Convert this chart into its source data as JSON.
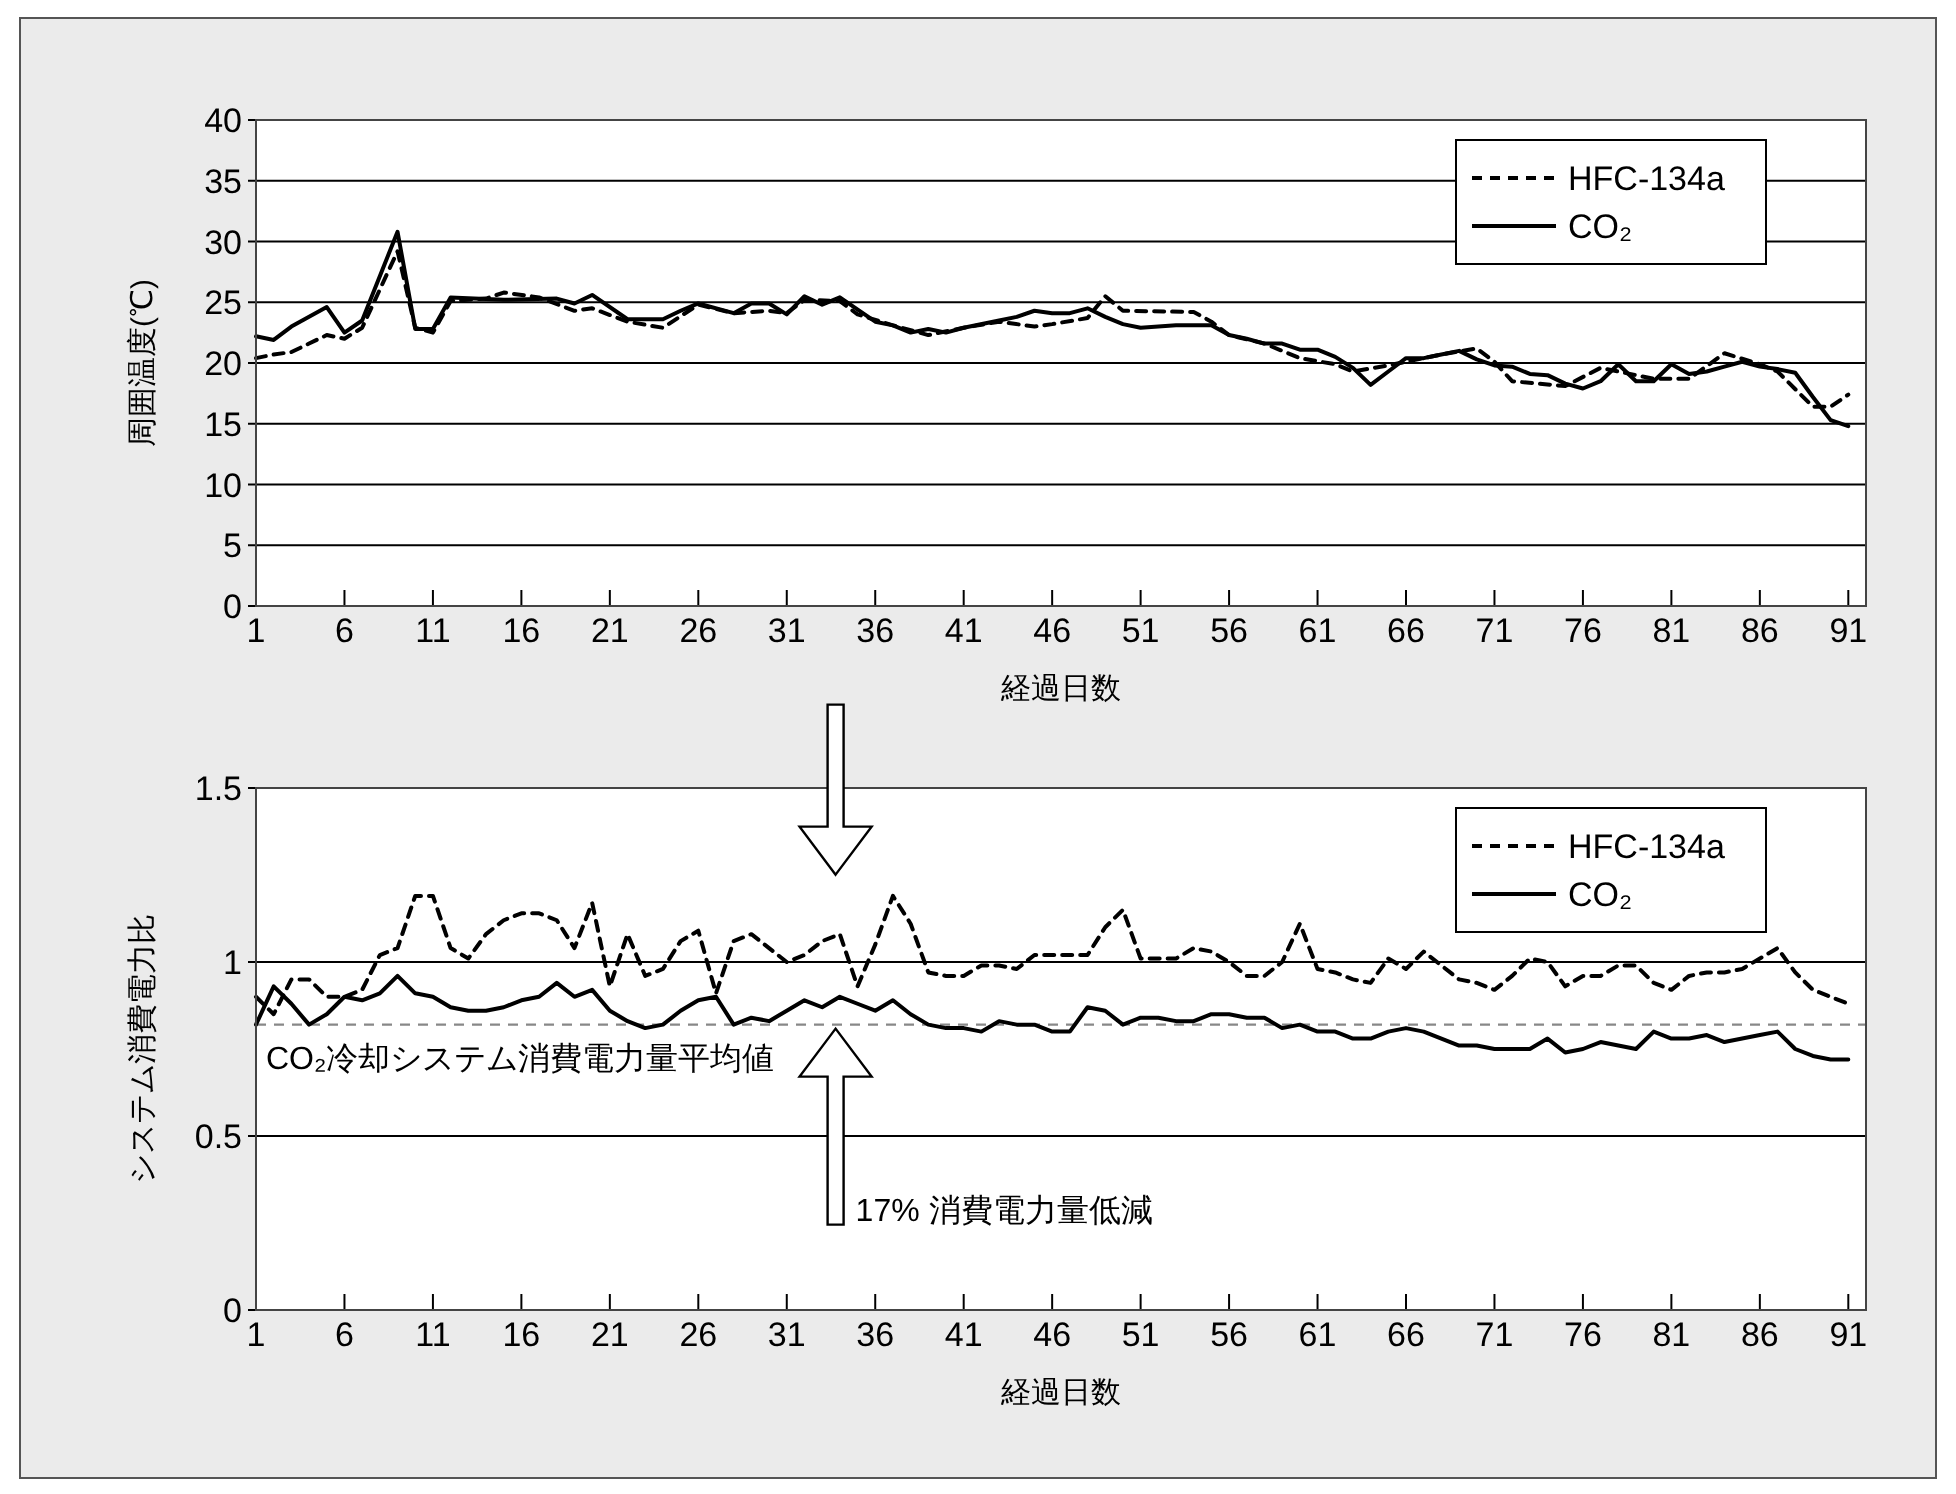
{
  "chart_data": [
    {
      "type": "line",
      "ylabel": "周囲温度(℃)",
      "xlabel": "経過日数",
      "xlim": [
        1,
        92
      ],
      "xticks": [
        1,
        6,
        11,
        16,
        21,
        26,
        31,
        36,
        41,
        46,
        51,
        56,
        61,
        66,
        71,
        76,
        81,
        86,
        91
      ],
      "ylim": [
        0,
        40
      ],
      "yticks": [
        0,
        5,
        10,
        15,
        20,
        25,
        30,
        35,
        40
      ],
      "grid": "y",
      "legend": "top right",
      "series": [
        {
          "name": "HFC-134a",
          "color": "#000000",
          "line_style": "dashed",
          "x": [
            1,
            2,
            3,
            4,
            5,
            6,
            7,
            9,
            10,
            11,
            12,
            14,
            15,
            17,
            19,
            20,
            22,
            24,
            26,
            28,
            30,
            31,
            32,
            34,
            35,
            37,
            39,
            41,
            43,
            45,
            46,
            48,
            49,
            50,
            54,
            55,
            56,
            58,
            60,
            62,
            63,
            65,
            68,
            70,
            71,
            72,
            75,
            77,
            80,
            82,
            84,
            86,
            87,
            89,
            90,
            91
          ],
          "values": [
            20.4,
            20.7,
            20.9,
            21.6,
            22.3,
            22,
            22.9,
            29.2,
            22.9,
            22.5,
            25.1,
            25.3,
            25.8,
            25.4,
            24.3,
            24.5,
            23.4,
            22.9,
            24.8,
            24.1,
            24.3,
            24.1,
            25.2,
            25.1,
            24,
            23.1,
            22.3,
            22.9,
            23.4,
            23,
            23.2,
            23.7,
            25.5,
            24.3,
            24.2,
            23.4,
            22.3,
            21.6,
            20.4,
            19.9,
            19.3,
            19.8,
            20.7,
            21.2,
            20.1,
            18.5,
            18.1,
            19.6,
            18.7,
            18.7,
            20.8,
            19.9,
            19.3,
            16.4,
            16.4,
            17.4
          ]
        },
        {
          "name": "CO₂",
          "color": "#000000",
          "line_style": "solid",
          "x": [
            1,
            2,
            3,
            5,
            6,
            7,
            9,
            10,
            11,
            12,
            15,
            18,
            19,
            20,
            22,
            24,
            25,
            26,
            28,
            29,
            30,
            31,
            32,
            33,
            34,
            36,
            37,
            38,
            39,
            40,
            41,
            43,
            44,
            45,
            46,
            47,
            48,
            49,
            50,
            51,
            53,
            55,
            56,
            57,
            58,
            59,
            60,
            61,
            62,
            63,
            64,
            65,
            66,
            67,
            68,
            69,
            70,
            71,
            72,
            73,
            74,
            75,
            76,
            77,
            78,
            79,
            80,
            81,
            82,
            83,
            84,
            85,
            86,
            87,
            88,
            89,
            90,
            91
          ],
          "values": [
            22.2,
            21.9,
            23,
            24.6,
            22.5,
            23.5,
            30.8,
            22.8,
            22.8,
            25.4,
            25.2,
            25.3,
            24.9,
            25.6,
            23.6,
            23.6,
            24.3,
            24.9,
            24.1,
            24.9,
            24.9,
            24,
            25.5,
            24.8,
            25.4,
            23.4,
            23.1,
            22.5,
            22.8,
            22.5,
            22.9,
            23.5,
            23.8,
            24.3,
            24.1,
            24.1,
            24.5,
            23.8,
            23.2,
            22.9,
            23.1,
            23.1,
            22.3,
            22,
            21.6,
            21.6,
            21.1,
            21.1,
            20.5,
            19.6,
            18.2,
            19.3,
            20.4,
            20.4,
            20.7,
            21,
            20.3,
            19.8,
            19.7,
            19.1,
            19,
            18.3,
            17.9,
            18.5,
            19.9,
            18.5,
            18.5,
            19.9,
            19.1,
            19.3,
            19.7,
            20.1,
            19.7,
            19.5,
            19.2,
            17.2,
            15.3,
            14.8
          ]
        }
      ]
    },
    {
      "type": "line",
      "ylabel": "システム消費電力比",
      "xlabel": "経過日数",
      "xlim": [
        1,
        92
      ],
      "xticks": [
        1,
        6,
        11,
        16,
        21,
        26,
        31,
        36,
        41,
        46,
        51,
        56,
        61,
        66,
        71,
        76,
        81,
        86,
        91
      ],
      "ylim": [
        0,
        1.5
      ],
      "yticks": [
        0,
        0.5,
        1,
        1.5
      ],
      "grid": "y",
      "legend": "top right",
      "ref_lines": [
        {
          "axis": "y",
          "value": 0.82,
          "label": "CO₂冷却システム消費電力量平均値",
          "color": "#888888",
          "line_style": "dashed"
        }
      ],
      "annotations": [
        "17% 消費電力量低減"
      ],
      "series": [
        {
          "name": "HFC-134a",
          "color": "#000000",
          "line_style": "dashed",
          "x": [
            1,
            2,
            3,
            4,
            5,
            6,
            7,
            8,
            9,
            10,
            11,
            12,
            13,
            14,
            15,
            16,
            17,
            18,
            19,
            20,
            21,
            22,
            23,
            24,
            25,
            26,
            27,
            28,
            29,
            30,
            31,
            32,
            33,
            34,
            35,
            36,
            37,
            38,
            39,
            40,
            41,
            42,
            43,
            44,
            45,
            46,
            47,
            48,
            49,
            50,
            51,
            52,
            53,
            54,
            55,
            56,
            57,
            58,
            59,
            60,
            61,
            62,
            63,
            64,
            65,
            66,
            67,
            68,
            69,
            70,
            71,
            72,
            73,
            74,
            75,
            76,
            77,
            78,
            79,
            80,
            81,
            82,
            83,
            84,
            85,
            86,
            87,
            88,
            89,
            90,
            91
          ],
          "values": [
            0.9,
            0.85,
            0.95,
            0.95,
            0.9,
            0.9,
            0.92,
            1.02,
            1.04,
            1.19,
            1.19,
            1.04,
            1.01,
            1.08,
            1.12,
            1.14,
            1.14,
            1.12,
            1.04,
            1.17,
            0.93,
            1.08,
            0.96,
            0.98,
            1.06,
            1.09,
            0.91,
            1.06,
            1.08,
            1.04,
            1.0,
            1.02,
            1.06,
            1.08,
            0.93,
            1.05,
            1.19,
            1.11,
            0.97,
            0.96,
            0.96,
            0.99,
            0.99,
            0.98,
            1.02,
            1.02,
            1.02,
            1.02,
            1.1,
            1.15,
            1.01,
            1.01,
            1.01,
            1.04,
            1.03,
            1.0,
            0.96,
            0.96,
            1.0,
            1.11,
            0.98,
            0.97,
            0.95,
            0.94,
            1.01,
            0.98,
            1.03,
            0.99,
            0.95,
            0.94,
            0.92,
            0.96,
            1.01,
            1.0,
            0.93,
            0.96,
            0.96,
            0.99,
            0.99,
            0.94,
            0.92,
            0.96,
            0.97,
            0.97,
            0.98,
            1.01,
            1.04,
            0.97,
            0.92,
            0.9,
            0.88
          ]
        },
        {
          "name": "CO₂",
          "color": "#000000",
          "line_style": "solid",
          "x": [
            1,
            2,
            3,
            4,
            5,
            6,
            7,
            8,
            9,
            10,
            11,
            12,
            13,
            14,
            15,
            16,
            17,
            18,
            19,
            20,
            21,
            22,
            23,
            24,
            25,
            26,
            27,
            28,
            29,
            30,
            31,
            32,
            33,
            34,
            35,
            36,
            37,
            38,
            39,
            40,
            41,
            42,
            43,
            44,
            45,
            46,
            47,
            48,
            49,
            50,
            51,
            52,
            53,
            54,
            55,
            56,
            57,
            58,
            59,
            60,
            61,
            62,
            63,
            64,
            65,
            66,
            67,
            68,
            69,
            70,
            71,
            72,
            73,
            74,
            75,
            76,
            77,
            78,
            79,
            80,
            81,
            82,
            83,
            84,
            85,
            86,
            87,
            88,
            89,
            90,
            91
          ],
          "values": [
            0.82,
            0.93,
            0.88,
            0.82,
            0.85,
            0.9,
            0.89,
            0.91,
            0.96,
            0.91,
            0.9,
            0.87,
            0.86,
            0.86,
            0.87,
            0.89,
            0.9,
            0.94,
            0.9,
            0.92,
            0.86,
            0.83,
            0.81,
            0.82,
            0.86,
            0.89,
            0.9,
            0.82,
            0.84,
            0.83,
            0.86,
            0.89,
            0.87,
            0.9,
            0.88,
            0.86,
            0.89,
            0.85,
            0.82,
            0.81,
            0.81,
            0.8,
            0.83,
            0.82,
            0.82,
            0.8,
            0.8,
            0.87,
            0.86,
            0.82,
            0.84,
            0.84,
            0.83,
            0.83,
            0.85,
            0.85,
            0.84,
            0.84,
            0.81,
            0.82,
            0.8,
            0.8,
            0.78,
            0.78,
            0.8,
            0.81,
            0.8,
            0.78,
            0.76,
            0.76,
            0.75,
            0.75,
            0.75,
            0.78,
            0.74,
            0.75,
            0.77,
            0.76,
            0.75,
            0.8,
            0.78,
            0.78,
            0.79,
            0.77,
            0.78,
            0.79,
            0.8,
            0.75,
            0.73,
            0.72,
            0.72
          ]
        }
      ]
    }
  ]
}
